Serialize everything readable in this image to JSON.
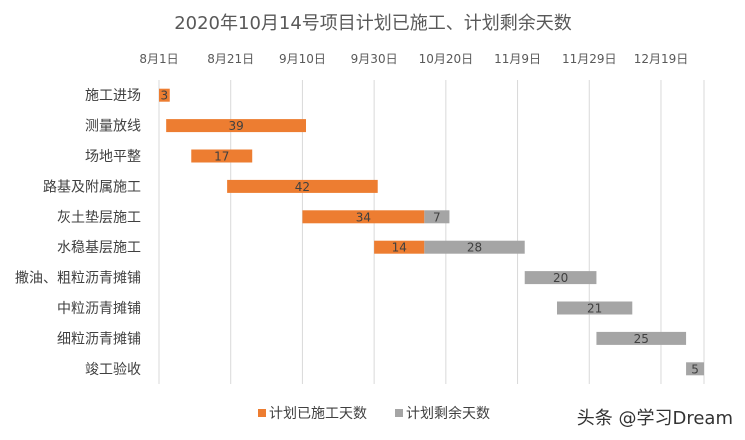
{
  "chart_data": {
    "type": "bar",
    "orientation": "horizontal",
    "stacked": true,
    "title": "2020年10月14号项目计划已施工、计划剩余天数",
    "categories": [
      "施工进场",
      "测量放线",
      "场地平整",
      "路基及附属施工",
      "灰土垫层施工",
      "水稳基层施工",
      "撒油、粗粒沥青摊铺",
      "中粒沥青摊铺",
      "细粒沥青摊铺",
      "竣工验收"
    ],
    "x_tick_labels": [
      "8月1日",
      "8月21日",
      "9月10日",
      "9月30日",
      "10月20日",
      "11月9日",
      "11月29日",
      "12月19日"
    ],
    "x_range_days_since_aug1": [
      0,
      152
    ],
    "start_offsets_days": [
      0,
      2,
      9,
      19,
      40,
      60,
      102,
      111,
      122,
      147
    ],
    "series": [
      {
        "name": "计划已施工天数",
        "color": "#ED7D31",
        "values": [
          3,
          39,
          17,
          42,
          34,
          14,
          null,
          null,
          null,
          null
        ]
      },
      {
        "name": "计划剩余天数",
        "color": "#A5A5A5",
        "values": [
          null,
          null,
          null,
          null,
          7,
          28,
          20,
          21,
          25,
          5
        ]
      }
    ],
    "legend_position": "bottom",
    "grid": "vertical"
  },
  "watermark": "头条 @学习Dream"
}
